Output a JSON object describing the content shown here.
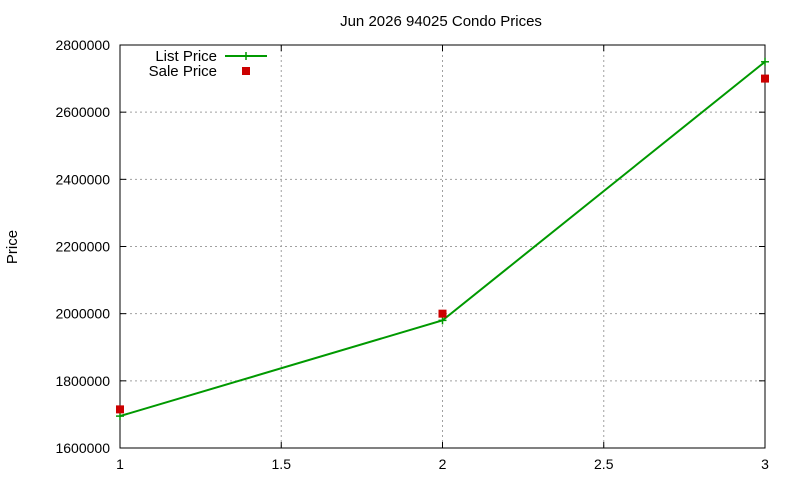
{
  "chart_data": {
    "type": "line",
    "title": "Jun 2026 94025 Condo Prices",
    "xlabel": "",
    "ylabel": "Price",
    "xlim": [
      1,
      3
    ],
    "ylim": [
      1600000,
      2800000
    ],
    "xticks": [
      "1",
      "1.5",
      "2",
      "2.5",
      "3"
    ],
    "yticks": [
      "1600000",
      "1800000",
      "2000000",
      "2200000",
      "2400000",
      "2600000",
      "2800000"
    ],
    "grid": true,
    "legend_position": "top-left",
    "series": [
      {
        "name": "List Price",
        "style": "line-with-plus-markers",
        "color": "#009900",
        "x": [
          1,
          2,
          3
        ],
        "y": [
          1695000,
          1980000,
          2750000
        ]
      },
      {
        "name": "Sale Price",
        "style": "square-markers",
        "color": "#cc0000",
        "x": [
          1,
          2,
          3
        ],
        "y": [
          1715000,
          2000000,
          2700000
        ]
      }
    ]
  }
}
